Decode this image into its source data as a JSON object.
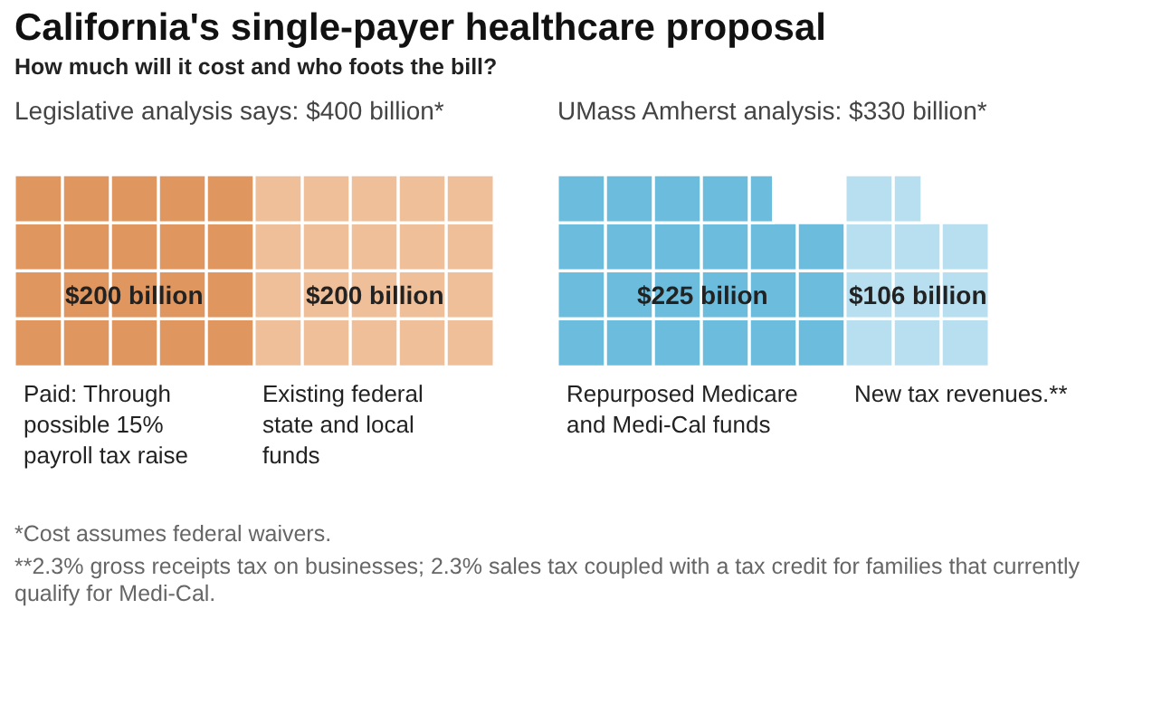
{
  "chart_data": [
    {
      "type": "other",
      "title": "California's single-payer healthcare proposal",
      "subtitle": "How much will it cost and who foots the bill?"
    },
    {
      "type": "other",
      "title": "Legislative analysis says: $400 billion*",
      "categories": [
        "Paid: Through possible 15% payroll tax raise",
        "Existing federal state and local funds"
      ],
      "values": [
        200,
        200
      ],
      "colors": [
        "#e0965f",
        "#efbf99"
      ],
      "value_labels": [
        "$200 billion",
        "$200 billion"
      ]
    },
    {
      "type": "other",
      "title": "UMass Amherst analysis: $330 billion*",
      "categories": [
        "Repurposed Medicare and Medi-Cal funds",
        "New tax revenues.**"
      ],
      "values": [
        225,
        106
      ],
      "colors": [
        "#6cbcdd",
        "#b8dff0"
      ],
      "value_labels": [
        "$225 bilion",
        "$106 billion"
      ]
    },
    {
      "type": "other",
      "annotations": [
        "*Cost assumes federal waivers.",
        "**2.3% gross receipts tax on businesses; 2.3% sales tax coupled with a tax credit for families that currently qualify for Medi-Cal."
      ]
    }
  ]
}
